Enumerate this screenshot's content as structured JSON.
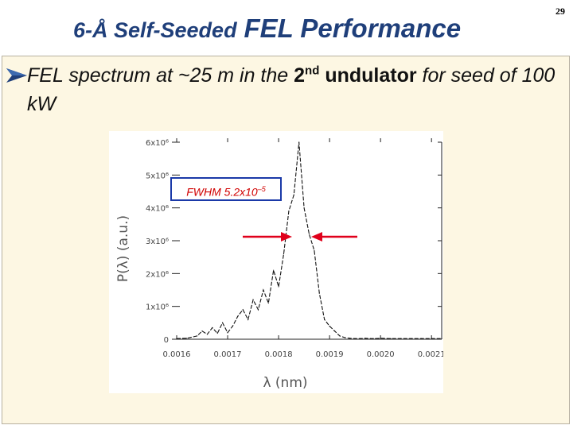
{
  "slide": {
    "title_part1": "6-Å Self-Seeded",
    "title_part2": "FEL Performance",
    "page_number": "29"
  },
  "bullet": {
    "text_before": "FEL spectrum at ~25 m in the ",
    "ordinal": "2",
    "ordinal_suffix": "nd",
    "emphasis": "undulator",
    "text_after": " for seed of 100 kW"
  },
  "annotation": {
    "label": "FWHM 5.2x10",
    "exponent": "–5",
    "arrow_color": "#e0001b",
    "box_color": "#1a39a8"
  },
  "chart_data": {
    "type": "line",
    "xlabel": "λ (nm)",
    "ylabel": "P(λ) (a.u.)",
    "xlim": [
      0.0016,
      0.00212
    ],
    "ylim": [
      0,
      6000000.0
    ],
    "x_ticks": [
      "0.0016",
      "0.0017",
      "0.0018",
      "0.0019",
      "0.0020",
      "0.0021"
    ],
    "x_tick_values": [
      0.0016,
      0.0017,
      0.0018,
      0.0019,
      0.002,
      0.0021
    ],
    "y_ticks": [
      "0",
      "1x10⁶",
      "2x10⁶",
      "3x10⁶",
      "4x10⁶",
      "5x10⁶",
      "6x10⁶"
    ],
    "y_tick_values": [
      0,
      1000000.0,
      2000000.0,
      3000000.0,
      4000000.0,
      5000000.0,
      6000000.0
    ],
    "series": [
      {
        "color": "#111111",
        "x": [
          0.0016,
          0.00162,
          0.00164,
          0.00165,
          0.00166,
          0.00167,
          0.00168,
          0.00169,
          0.0017,
          0.00171,
          0.00172,
          0.00173,
          0.00174,
          0.00175,
          0.00176,
          0.00177,
          0.00178,
          0.00179,
          0.0018,
          0.00181,
          0.00182,
          0.00183,
          0.00184,
          0.00185,
          0.00186,
          0.00187,
          0.00188,
          0.00189,
          0.0019,
          0.00191,
          0.00192,
          0.00193,
          0.00194,
          0.00195,
          0.00196,
          0.00197,
          0.00198,
          0.00199,
          0.002,
          0.00202,
          0.00204,
          0.00206,
          0.00208,
          0.0021,
          0.00212
        ],
        "y": [
          20000.0,
          30000.0,
          100000.0,
          250000.0,
          150000.0,
          350000.0,
          180000.0,
          500000.0,
          200000.0,
          400000.0,
          700000.0,
          900000.0,
          600000.0,
          1200000.0,
          900000.0,
          1500000.0,
          1100000.0,
          2100000.0,
          1600000.0,
          2600000.0,
          3900000.0,
          4400000.0,
          6000000.0,
          4000000.0,
          3200000.0,
          2700000.0,
          1400000.0,
          600000.0,
          400000.0,
          250000.0,
          100000.0,
          50000.0,
          30000.0,
          20000.0,
          20000.0,
          30000.0,
          20000.0,
          20000.0,
          30000.0,
          20000.0,
          20000.0,
          20000.0,
          20000.0,
          20000.0,
          20000.0
        ]
      }
    ]
  }
}
